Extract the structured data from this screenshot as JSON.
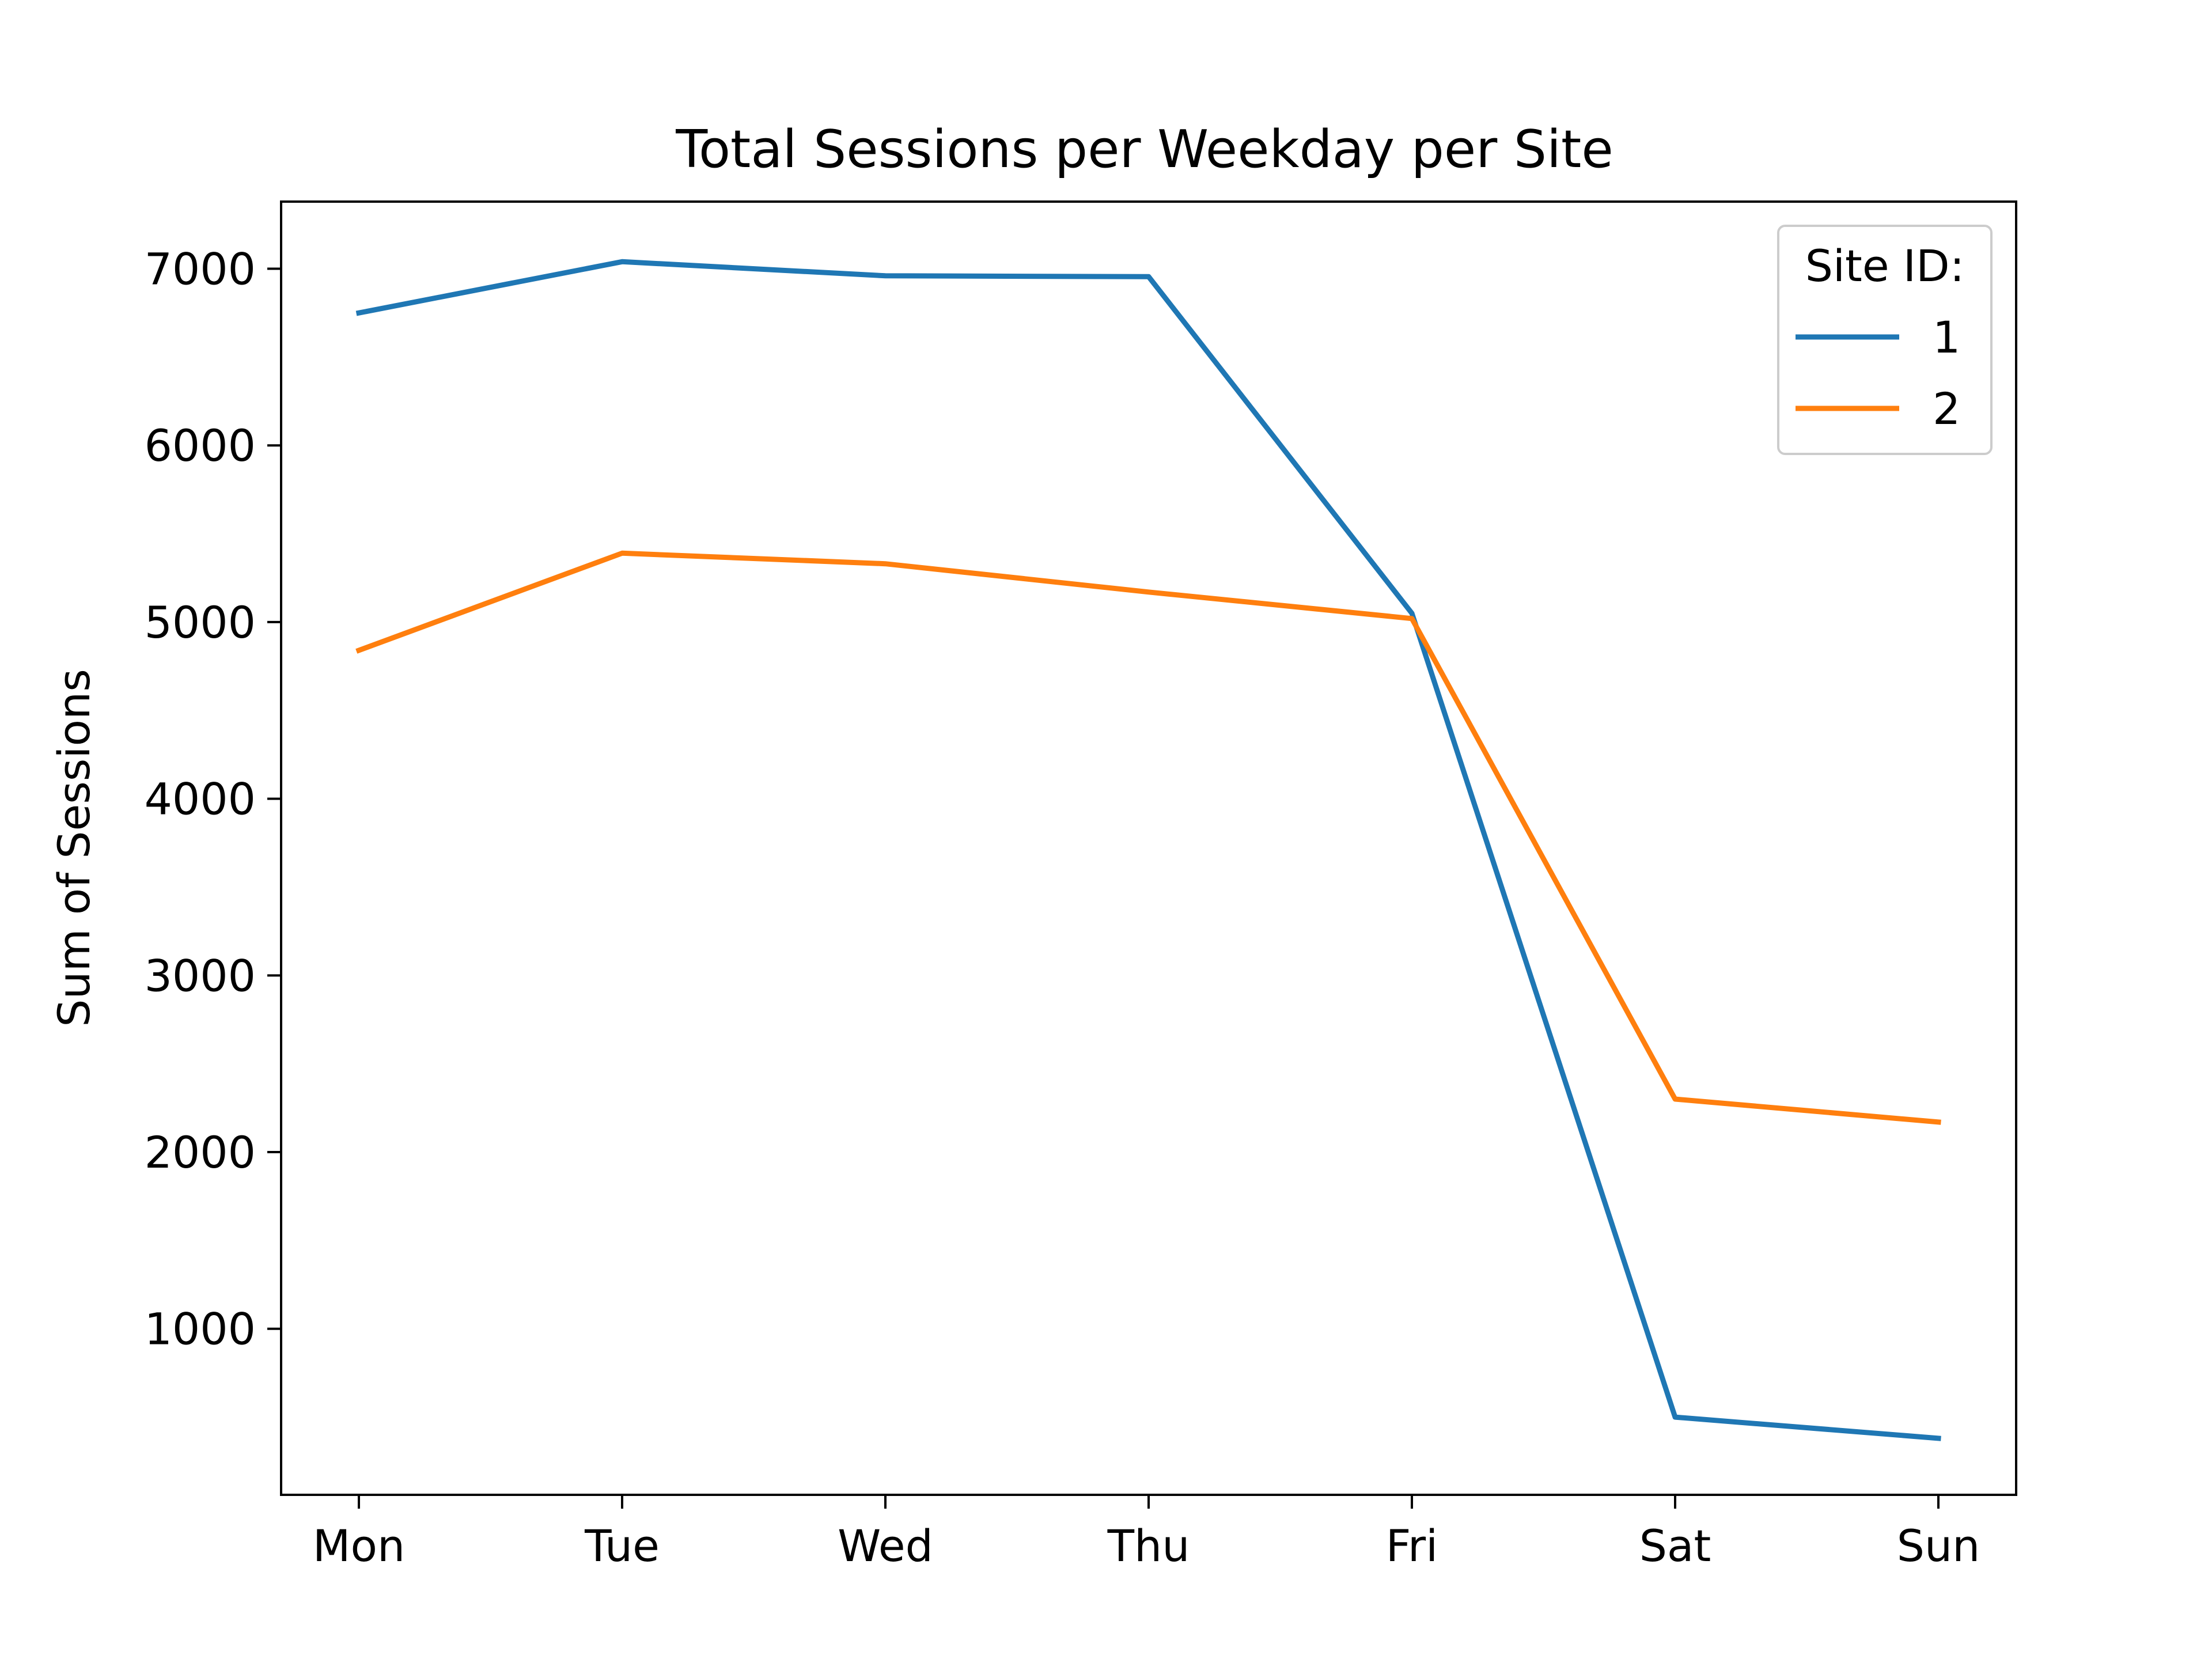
{
  "chart_data": {
    "type": "line",
    "title": "Total Sessions per Weekday per Site",
    "xlabel": "",
    "ylabel": "Sum of Sessions",
    "categories": [
      "Mon",
      "Tue",
      "Wed",
      "Thu",
      "Fri",
      "Sat",
      "Sun"
    ],
    "series": [
      {
        "name": "1",
        "color": "#1f77b4",
        "values": [
          6750,
          7040,
          6960,
          6955,
          5050,
          500,
          380
        ]
      },
      {
        "name": "2",
        "color": "#ff7f0e",
        "values": [
          4840,
          5390,
          5330,
          5170,
          5020,
          2300,
          2170
        ]
      }
    ],
    "yticks": [
      1000,
      2000,
      3000,
      4000,
      5000,
      6000,
      7000
    ],
    "ylim": [
      60,
      7380
    ],
    "grid": false,
    "legend": {
      "title": "Site ID:",
      "position": "top-right"
    }
  }
}
